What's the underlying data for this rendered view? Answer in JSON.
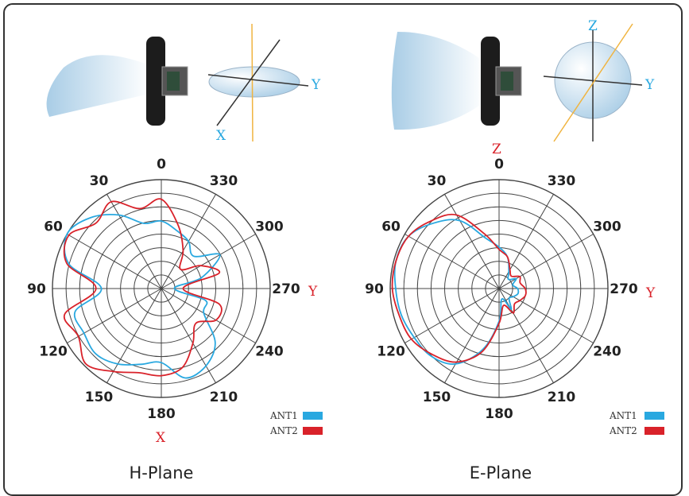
{
  "chart_data": [
    {
      "type": "polar",
      "title": "H-Plane",
      "angle_labels": [
        "0",
        "30",
        "60",
        "90",
        "120",
        "150",
        "180",
        "210",
        "240",
        "270",
        "300",
        "330"
      ],
      "axis_labels": {
        "side": "Y",
        "bottom": "X"
      },
      "series": [
        {
          "name": "ANT1",
          "color": "#29a8e0",
          "points": [
            [
              0,
              0.62
            ],
            [
              15,
              0.62
            ],
            [
              30,
              0.78
            ],
            [
              45,
              0.92
            ],
            [
              60,
              1.0
            ],
            [
              75,
              0.88
            ],
            [
              90,
              0.55
            ],
            [
              105,
              0.82
            ],
            [
              120,
              0.82
            ],
            [
              135,
              0.85
            ],
            [
              150,
              0.8
            ],
            [
              165,
              0.72
            ],
            [
              180,
              0.68
            ],
            [
              195,
              0.85
            ],
            [
              210,
              0.82
            ],
            [
              225,
              0.7
            ],
            [
              240,
              0.45
            ],
            [
              255,
              0.42
            ],
            [
              270,
              0.12
            ],
            [
              285,
              0.38
            ],
            [
              300,
              0.62
            ],
            [
              315,
              0.42
            ],
            [
              330,
              0.5
            ],
            [
              345,
              0.55
            ],
            [
              360,
              0.62
            ]
          ]
        },
        {
          "name": "ANT2",
          "color": "#d9222a",
          "points": [
            [
              0,
              0.82
            ],
            [
              15,
              0.76
            ],
            [
              30,
              0.92
            ],
            [
              45,
              0.85
            ],
            [
              60,
              0.98
            ],
            [
              75,
              0.9
            ],
            [
              90,
              0.6
            ],
            [
              105,
              0.92
            ],
            [
              120,
              0.88
            ],
            [
              135,
              0.98
            ],
            [
              150,
              0.88
            ],
            [
              165,
              0.8
            ],
            [
              180,
              0.8
            ],
            [
              195,
              0.75
            ],
            [
              210,
              0.58
            ],
            [
              225,
              0.45
            ],
            [
              240,
              0.58
            ],
            [
              255,
              0.55
            ],
            [
              270,
              0.2
            ],
            [
              285,
              0.55
            ],
            [
              300,
              0.42
            ],
            [
              315,
              0.25
            ],
            [
              330,
              0.4
            ],
            [
              345,
              0.6
            ],
            [
              360,
              0.82
            ]
          ]
        }
      ]
    },
    {
      "type": "polar",
      "title": "E-Plane",
      "angle_labels": [
        "0",
        "30",
        "60",
        "90",
        "120",
        "150",
        "180",
        "210",
        "240",
        "270",
        "300",
        "330"
      ],
      "axis_labels": {
        "side": "Y",
        "top": "Z"
      },
      "series": [
        {
          "name": "ANT1",
          "color": "#29a8e0",
          "points": [
            [
              0,
              0.38
            ],
            [
              15,
              0.48
            ],
            [
              30,
              0.72
            ],
            [
              45,
              0.85
            ],
            [
              60,
              0.96
            ],
            [
              75,
              0.98
            ],
            [
              90,
              0.95
            ],
            [
              105,
              0.93
            ],
            [
              120,
              0.9
            ],
            [
              135,
              0.88
            ],
            [
              150,
              0.8
            ],
            [
              165,
              0.58
            ],
            [
              180,
              0.3
            ],
            [
              195,
              0.1
            ],
            [
              210,
              0.22
            ],
            [
              225,
              0.13
            ],
            [
              240,
              0.15
            ],
            [
              255,
              0.18
            ],
            [
              270,
              0.17
            ],
            [
              285,
              0.13
            ],
            [
              300,
              0.18
            ],
            [
              315,
              0.12
            ],
            [
              330,
              0.18
            ],
            [
              345,
              0.3
            ],
            [
              360,
              0.38
            ]
          ]
        },
        {
          "name": "ANT2",
          "color": "#d9222a",
          "points": [
            [
              0,
              0.36
            ],
            [
              15,
              0.52
            ],
            [
              30,
              0.78
            ],
            [
              45,
              0.88
            ],
            [
              60,
              0.96
            ],
            [
              75,
              0.98
            ],
            [
              90,
              0.98
            ],
            [
              105,
              0.95
            ],
            [
              120,
              0.93
            ],
            [
              135,
              0.86
            ],
            [
              150,
              0.78
            ],
            [
              165,
              0.6
            ],
            [
              180,
              0.32
            ],
            [
              195,
              0.16
            ],
            [
              210,
              0.26
            ],
            [
              225,
              0.2
            ],
            [
              240,
              0.22
            ],
            [
              255,
              0.25
            ],
            [
              270,
              0.24
            ],
            [
              285,
              0.2
            ],
            [
              300,
              0.22
            ],
            [
              315,
              0.16
            ],
            [
              330,
              0.2
            ],
            [
              345,
              0.3
            ],
            [
              360,
              0.36
            ]
          ]
        }
      ]
    }
  ]
}
